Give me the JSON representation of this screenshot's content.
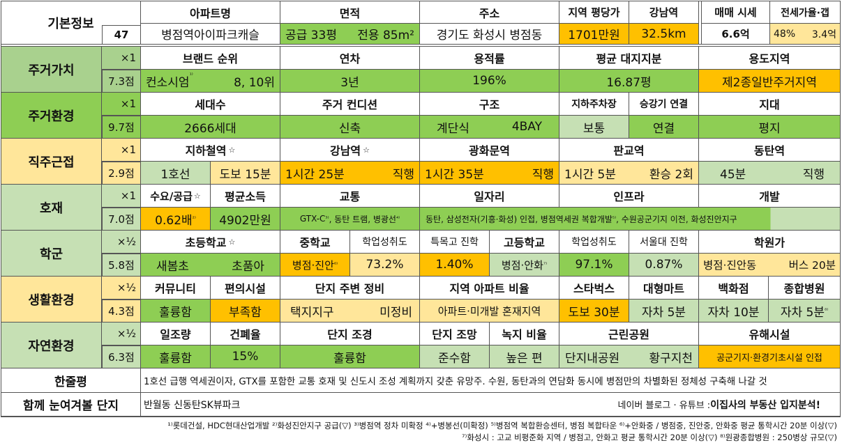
{
  "basic": {
    "label": "기본정보",
    "number": "47",
    "apt_h": "아파트명",
    "apt": "병점역아이파크캐슬",
    "area_h": "면적",
    "area_a": "공급 33평",
    "area_b": "전용 85m²",
    "addr_h": "주소",
    "addr": "경기도 화성시 병점동",
    "pyung_h": "지역 평당가",
    "pyung": "1701만원",
    "gangnam_h": "강남역",
    "gangnam": "32.5km",
    "sale_h": "매매 시세",
    "sale": "6.6억",
    "jeonse_h": "전세가율·갭",
    "jeonse_a": "48%",
    "jeonse_b": "3.4억"
  },
  "living_value": {
    "label": "주거가치",
    "mult": "×1",
    "score": "7.3점",
    "brand_h": "브랜드 순위",
    "brand_a": "컨소시엄",
    "brand_sup": "¹⁾",
    "brand_b": "8, 10위",
    "age_h": "연차",
    "age": "3년",
    "far_h": "용적률",
    "far": "196%",
    "land_h": "평균 대지지분",
    "land": "16.87평",
    "zone_h": "용도지역",
    "zone": "제2종일반주거지역"
  },
  "living_env": {
    "label": "주거환경",
    "mult": "×1",
    "score": "9.7점",
    "units_h": "세대수",
    "units": "2666세대",
    "cond_h": "주거 컨디션",
    "cond": "신축",
    "struct_h": "구조",
    "struct_a": "계단식",
    "struct_b": "4BAY",
    "parking_h": "지하주차장",
    "parking": "보통",
    "elev_h": "승강기 연결",
    "elev": "연결",
    "terrain_h": "지대",
    "terrain": "평지"
  },
  "commute": {
    "label": "직주근접",
    "mult": "×1",
    "score": "2.9점",
    "subway_h": "지하철역",
    "subway_a": "1호선",
    "subway_b": "도보 15분",
    "gangnam_h": "강남역",
    "gangnam_a": "1시간 25분",
    "gangnam_b": "직행",
    "gwanghwa_h": "광화문역",
    "gwanghwa_a": "1시간 35분",
    "gwanghwa_b": "직행",
    "pangyo_h": "판교역",
    "pangyo_a": "1시간 5분",
    "pangyo_b": "환승 2회",
    "dongtan_h": "동탄역",
    "dongtan_a": "45분",
    "dongtan_b": "직행",
    "star": "☆"
  },
  "development": {
    "label": "호재",
    "mult": "×1",
    "score": "7.0점",
    "supply_h": "수요/공급",
    "supply": "0.62배",
    "supply_sup": "²⁾",
    "income_h": "평균소득",
    "income": "4902만원",
    "traffic_h": "교통",
    "traffic_a": "GTX-C",
    "traffic_sup1": "³⁾",
    "traffic_b": ", 동탄 트램, 병광선",
    "traffic_sup2": "⁴⁾",
    "jobs_h": "일자리",
    "infra_h": "인프라",
    "dev_h": "개발",
    "detail": "동탄, 삼성전자(기흥·화성) 인접, 병점역세권 복합개발",
    "detail_sup": "⁵⁾",
    "detail_b": ", 수원공군기지 이전, 화성진안지구"
  },
  "school": {
    "label": "학군",
    "mult": "×½",
    "score": "5.8점",
    "elem_h": "초등학교",
    "elem_a": "새봄초",
    "elem_b": "초품아",
    "mid_h": "중학교",
    "mid": "병점·진안",
    "mid_sup": "⁶⁾",
    "mid_ach_h": "학업성취도",
    "mid_ach": "73.2%",
    "special_h": "특목고 진학",
    "special": "1.40%",
    "high_h": "고등학교",
    "high": "병점·안화",
    "high_sup": "⁷⁾",
    "high_ach_h": "학업성취도",
    "high_ach": "97.1%",
    "snu_h": "서울대 진학",
    "snu": "0.87%",
    "academy_h": "학원가",
    "academy_a": "병점·진안동",
    "academy_b": "버스 20분"
  },
  "life": {
    "label": "생활환경",
    "mult": "×½",
    "score": "4.3점",
    "comm_h": "커뮤니티",
    "comm": "훌륭함",
    "conv_h": "편의시설",
    "conv": "부족함",
    "around_h": "단지 주변 정비",
    "around_a": "택지지구",
    "around_b": "미정비",
    "ratio_h": "지역 아파트 비율",
    "ratio": "아파트·미개발 혼재지역",
    "sbux_h": "스타벅스",
    "sbux": "도보 30분",
    "mart_h": "대형마트",
    "mart": "자차 5분",
    "dept_h": "백화점",
    "dept": "자차 10분",
    "hosp_h": "종합병원",
    "hosp": "자차 5분",
    "hosp_sup": "⁸⁾"
  },
  "nature": {
    "label": "자연환경",
    "mult": "×½",
    "score": "6.3점",
    "sun_h": "일조량",
    "sun": "훌륭함",
    "cover_h": "건폐율",
    "cover": "15%",
    "land_h": "단지 조경",
    "land": "훌륭함",
    "view_h": "단지 조망",
    "view": "준수함",
    "green_h": "녹지 비율",
    "green": "높은 편",
    "park_h": "근린공원",
    "park_a": "단지내공원",
    "park_b": "황구지천",
    "harm_h": "유해시설",
    "harm": "공군기지·환경기초시설 인접"
  },
  "summary": {
    "label": "한줄평",
    "text": "1호선 급행 역세권이자, GTX를 포함한 교통 호재 및 신도시 조성 계획까지 갖춘 유망주. 수원, 동탄과의 연담화 동시에 병점만의 차별화된 정체성 구축해 나갈 것"
  },
  "compare": {
    "label": "함께 눈여겨볼 단지",
    "text": "반월동 신동탄SK뷰파크",
    "credit_a": "네이버 블로그 · 유튜브 : ",
    "credit_b": "이집사의 부동산 입지분석!"
  },
  "footnotes": {
    "line1": "¹⁾롯데건설, HDC현대산업개발 ²⁾화성진안지구 공급(▽) ³⁾병점역 정차 미확정 ⁴⁾+병봉선(미확정) ⁵⁾병점역 복합환승센터, 병점 복합타운 ⁶⁾+안화중 / 병점중, 진안중, 안화중 평균 통학시간 20분 이상(▽)",
    "line2": "⁷⁾화성시 : 고교 비평준화 지역 / 병점고, 안화고 평균 통학시간 20분 이상(▽) ⁸⁾원광종합병원 : 250병상 규모(▽)"
  },
  "colors": {
    "green": "#8ece54",
    "light_green": "#c6e0b4",
    "orange": "#ffc000",
    "light_yellow": "#ffe69a"
  }
}
